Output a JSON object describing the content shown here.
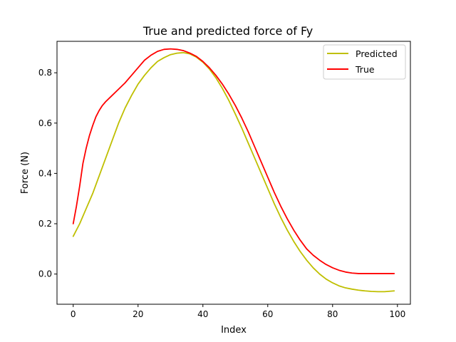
{
  "chart_data": {
    "type": "line",
    "title": "True and predicted force of Fy",
    "xlabel": "Index",
    "ylabel": "Force (N)",
    "xlim": [
      -5,
      104
    ],
    "ylim": [
      -0.12,
      0.925
    ],
    "xticks": [
      0,
      20,
      40,
      60,
      80,
      100
    ],
    "yticks": [
      0.0,
      0.2,
      0.4,
      0.6,
      0.8
    ],
    "ytick_labels": [
      "0.0",
      "0.2",
      "0.4",
      "0.6",
      "0.8"
    ],
    "grid": false,
    "legend_position": "top-right",
    "series": [
      {
        "name": "Predicted",
        "color": "#bfbf00",
        "x": [
          0,
          2,
          4,
          6,
          8,
          10,
          12,
          14,
          16,
          18,
          20,
          22,
          24,
          26,
          28,
          30,
          32,
          34,
          36,
          38,
          40,
          42,
          44,
          46,
          48,
          50,
          52,
          54,
          56,
          58,
          60,
          62,
          64,
          66,
          68,
          70,
          72,
          74,
          76,
          78,
          80,
          82,
          84,
          86,
          88,
          90,
          92,
          94,
          96,
          98,
          99
        ],
        "values": [
          0.15,
          0.2,
          0.26,
          0.32,
          0.39,
          0.46,
          0.53,
          0.6,
          0.66,
          0.71,
          0.755,
          0.79,
          0.82,
          0.845,
          0.86,
          0.872,
          0.878,
          0.88,
          0.875,
          0.862,
          0.842,
          0.815,
          0.78,
          0.738,
          0.69,
          0.636,
          0.58,
          0.52,
          0.46,
          0.4,
          0.34,
          0.28,
          0.225,
          0.175,
          0.13,
          0.09,
          0.055,
          0.025,
          0.0,
          -0.02,
          -0.035,
          -0.047,
          -0.055,
          -0.06,
          -0.064,
          -0.067,
          -0.069,
          -0.07,
          -0.07,
          -0.068,
          -0.067
        ]
      },
      {
        "name": "True",
        "color": "#ff0000",
        "x": [
          0,
          1,
          2,
          3,
          4,
          5,
          6,
          7,
          8,
          9,
          10,
          12,
          14,
          16,
          18,
          20,
          22,
          24,
          26,
          28,
          30,
          32,
          34,
          36,
          38,
          40,
          42,
          44,
          46,
          48,
          50,
          52,
          54,
          56,
          58,
          60,
          62,
          64,
          66,
          68,
          70,
          72,
          74,
          76,
          78,
          80,
          82,
          84,
          86,
          88,
          90,
          92,
          94,
          96,
          98,
          99
        ],
        "values": [
          0.2,
          0.27,
          0.35,
          0.44,
          0.5,
          0.55,
          0.59,
          0.625,
          0.65,
          0.67,
          0.685,
          0.71,
          0.735,
          0.76,
          0.79,
          0.82,
          0.85,
          0.87,
          0.885,
          0.893,
          0.895,
          0.893,
          0.888,
          0.878,
          0.865,
          0.845,
          0.82,
          0.79,
          0.755,
          0.715,
          0.67,
          0.62,
          0.565,
          0.505,
          0.445,
          0.385,
          0.325,
          0.27,
          0.22,
          0.175,
          0.135,
          0.1,
          0.075,
          0.055,
          0.038,
          0.025,
          0.015,
          0.008,
          0.004,
          0.002,
          0.002,
          0.002,
          0.002,
          0.002,
          0.002,
          0.002
        ]
      }
    ]
  }
}
